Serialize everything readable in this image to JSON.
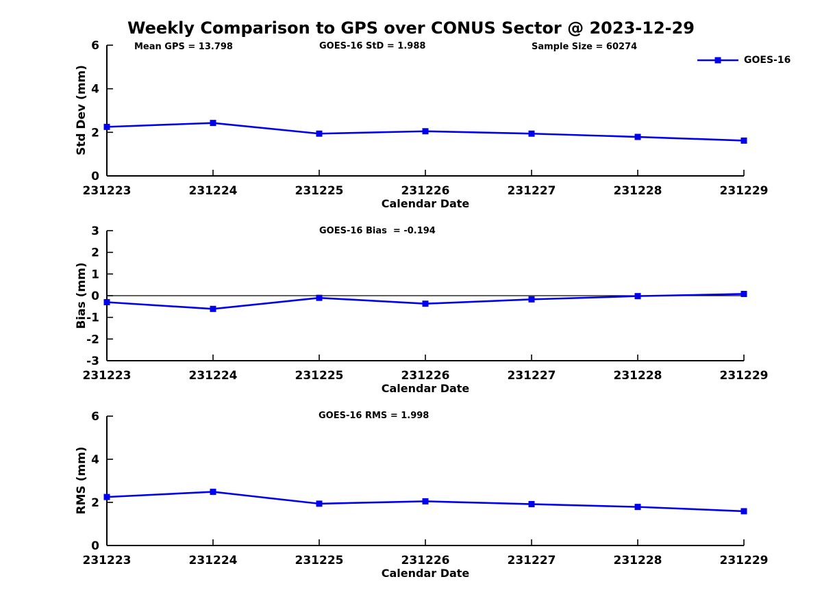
{
  "title": "Weekly Comparison to GPS over CONUS Sector @ 2023-12-29",
  "legend": {
    "label": "GOES-16",
    "marker": "square-icon",
    "position": "top-right"
  },
  "colors": {
    "line": "#0000ee",
    "axis": "#000000",
    "text": "#000000",
    "background": "#ffffff"
  },
  "chart_data": [
    {
      "type": "line",
      "name": "std-dev-subplot",
      "annotations": [
        "Mean GPS = 13.798",
        "GOES-16 StD = 1.988",
        "Sample Size = 60274"
      ],
      "categories": [
        "231223",
        "231224",
        "231225",
        "231226",
        "231227",
        "231228",
        "231229"
      ],
      "series": [
        {
          "name": "GOES-16",
          "values": [
            2.25,
            2.43,
            1.94,
            2.05,
            1.94,
            1.79,
            1.62
          ]
        }
      ],
      "xlabel": "Calendar Date",
      "ylabel": "Std Dev (mm)",
      "ylim": [
        0,
        6
      ],
      "yticks": [
        0,
        2,
        4,
        6
      ],
      "grid": false,
      "zero_line": false,
      "marker": "square",
      "legend_position": "top-right"
    },
    {
      "type": "line",
      "name": "bias-subplot",
      "annotations": [
        "GOES-16 Bias  = -0.194"
      ],
      "categories": [
        "231223",
        "231224",
        "231225",
        "231226",
        "231227",
        "231228",
        "231229"
      ],
      "series": [
        {
          "name": "GOES-16",
          "values": [
            -0.3,
            -0.61,
            -0.1,
            -0.37,
            -0.17,
            -0.02,
            0.08
          ]
        }
      ],
      "xlabel": "Calendar Date",
      "ylabel": "Bias (mm)",
      "ylim": [
        -3,
        3
      ],
      "yticks": [
        -3,
        -2,
        -1,
        0,
        1,
        2,
        3
      ],
      "grid": false,
      "zero_line": true,
      "marker": "square"
    },
    {
      "type": "line",
      "name": "rms-subplot",
      "annotations": [
        "GOES-16 RMS = 1.998"
      ],
      "categories": [
        "231223",
        "231224",
        "231225",
        "231226",
        "231227",
        "231228",
        "231229"
      ],
      "series": [
        {
          "name": "GOES-16",
          "values": [
            2.25,
            2.49,
            1.94,
            2.05,
            1.92,
            1.79,
            1.59
          ]
        }
      ],
      "xlabel": "Calendar Date",
      "ylabel": "RMS (mm)",
      "ylim": [
        0,
        6
      ],
      "yticks": [
        0,
        2,
        4,
        6
      ],
      "grid": false,
      "zero_line": false,
      "marker": "square"
    }
  ]
}
